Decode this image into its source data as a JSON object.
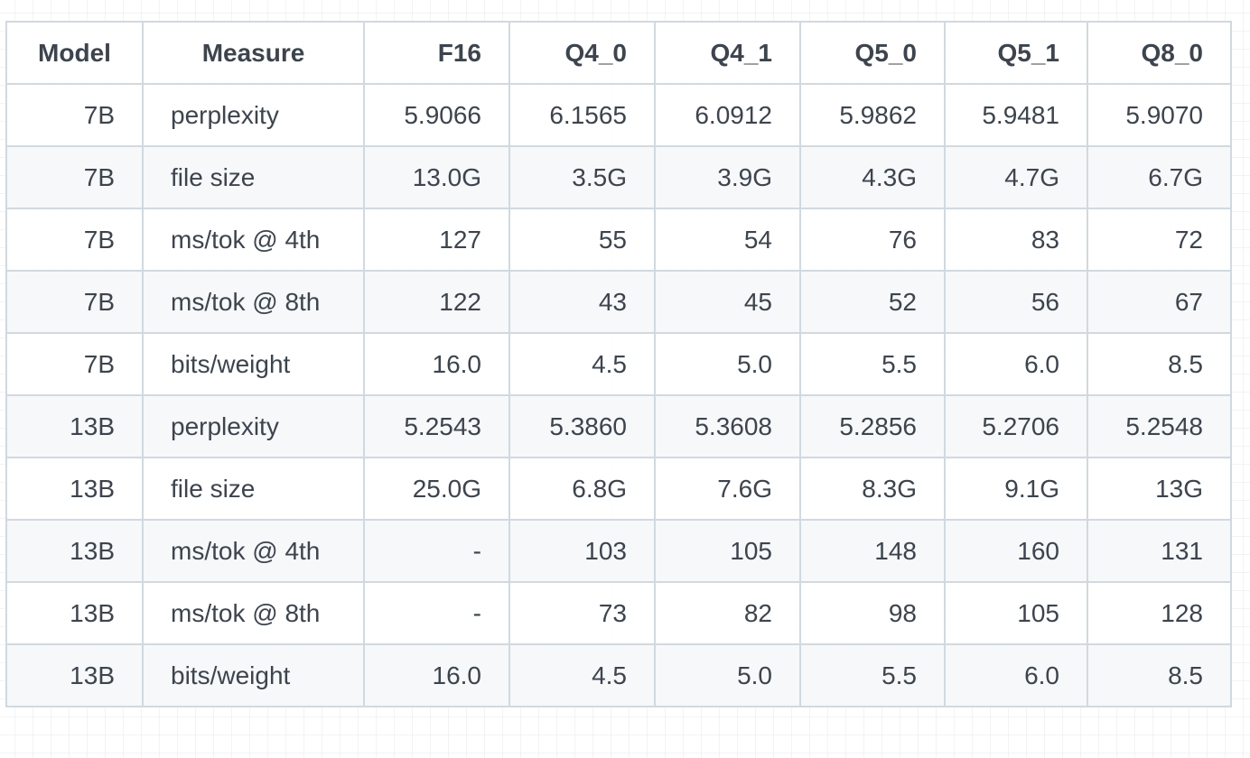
{
  "table": {
    "headers": [
      "Model",
      "Measure",
      "F16",
      "Q4_0",
      "Q4_1",
      "Q5_0",
      "Q5_1",
      "Q8_0"
    ],
    "rows": [
      [
        "7B",
        "perplexity",
        "5.9066",
        "6.1565",
        "6.0912",
        "5.9862",
        "5.9481",
        "5.9070"
      ],
      [
        "7B",
        "file size",
        "13.0G",
        "3.5G",
        "3.9G",
        "4.3G",
        "4.7G",
        "6.7G"
      ],
      [
        "7B",
        "ms/tok @ 4th",
        "127",
        "55",
        "54",
        "76",
        "83",
        "72"
      ],
      [
        "7B",
        "ms/tok @ 8th",
        "122",
        "43",
        "45",
        "52",
        "56",
        "67"
      ],
      [
        "7B",
        "bits/weight",
        "16.0",
        "4.5",
        "5.0",
        "5.5",
        "6.0",
        "8.5"
      ],
      [
        "13B",
        "perplexity",
        "5.2543",
        "5.3860",
        "5.3608",
        "5.2856",
        "5.2706",
        "5.2548"
      ],
      [
        "13B",
        "file size",
        "25.0G",
        "6.8G",
        "7.6G",
        "8.3G",
        "9.1G",
        "13G"
      ],
      [
        "13B",
        "ms/tok @ 4th",
        "-",
        "103",
        "105",
        "148",
        "160",
        "131"
      ],
      [
        "13B",
        "ms/tok @ 8th",
        "-",
        "73",
        "82",
        "98",
        "105",
        "128"
      ],
      [
        "13B",
        "bits/weight",
        "16.0",
        "4.5",
        "5.0",
        "5.5",
        "6.0",
        "8.5"
      ]
    ]
  },
  "colors": {
    "border": "#d1d9e0",
    "text": "#3d444d",
    "stripe": "#f6f8fa",
    "background": "#ffffff"
  }
}
